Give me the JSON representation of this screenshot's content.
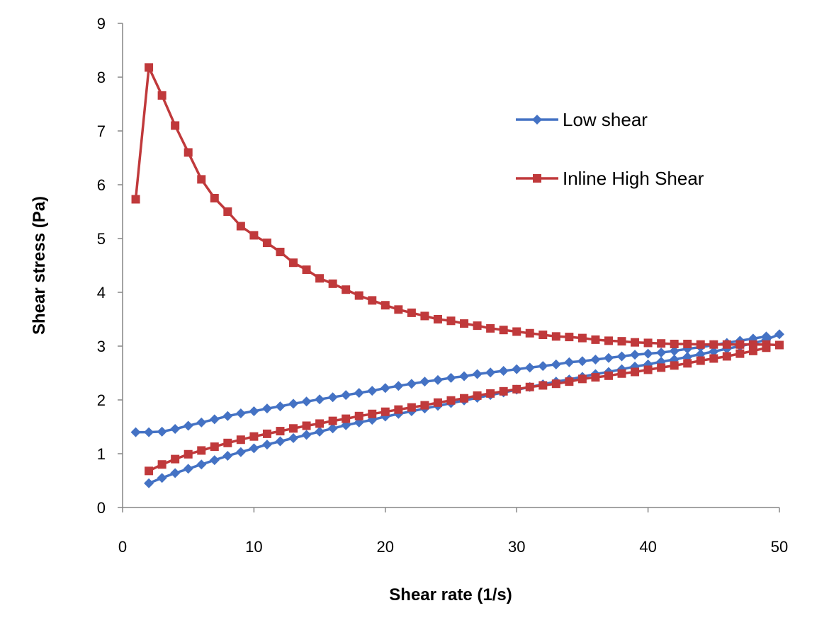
{
  "chart_data": {
    "type": "line",
    "title": "",
    "xlabel": "Shear rate (1/s)",
    "ylabel": "Shear stress (Pa)",
    "xlim": [
      0,
      50
    ],
    "ylim": [
      0,
      9
    ],
    "xticks": [
      0,
      10,
      20,
      30,
      40,
      50
    ],
    "yticks": [
      0,
      1,
      2,
      3,
      4,
      5,
      6,
      7,
      8,
      9
    ],
    "grid": false,
    "legend_position": "top-right",
    "series": [
      {
        "name": "Low shear",
        "color": "#4472C4",
        "marker": "diamond",
        "segments": [
          {
            "label": "upward",
            "x": [
              2,
              3,
              4,
              5,
              6,
              7,
              8,
              9,
              10,
              11,
              12,
              13,
              14,
              15,
              16,
              17,
              18,
              19,
              20,
              21,
              22,
              23,
              24,
              25,
              26,
              27,
              28,
              29,
              30,
              31,
              32,
              33,
              34,
              35,
              36,
              37,
              38,
              39,
              40,
              41,
              42,
              43,
              44,
              45,
              46,
              47,
              48,
              49,
              50
            ],
            "y": [
              0.45,
              0.55,
              0.64,
              0.72,
              0.8,
              0.88,
              0.96,
              1.03,
              1.1,
              1.17,
              1.23,
              1.29,
              1.35,
              1.41,
              1.47,
              1.53,
              1.58,
              1.63,
              1.69,
              1.74,
              1.79,
              1.84,
              1.89,
              1.94,
              1.99,
              2.04,
              2.09,
              2.14,
              2.19,
              2.24,
              2.29,
              2.34,
              2.38,
              2.43,
              2.48,
              2.52,
              2.57,
              2.62,
              2.66,
              2.71,
              2.75,
              2.8,
              2.85,
              2.9,
              2.95,
              3.0,
              3.05,
              3.12,
              3.22
            ]
          },
          {
            "label": "downward",
            "x": [
              49,
              48,
              47,
              46,
              45,
              44,
              43,
              42,
              41,
              40,
              39,
              38,
              37,
              36,
              35,
              34,
              33,
              32,
              31,
              30,
              29,
              28,
              27,
              26,
              25,
              24,
              23,
              22,
              21,
              20,
              19,
              18,
              17,
              16,
              15,
              14,
              13,
              12,
              11,
              10,
              9,
              8,
              7,
              6,
              5,
              4,
              3,
              2,
              1
            ],
            "y": [
              3.18,
              3.14,
              3.1,
              3.06,
              3.02,
              2.98,
              2.95,
              2.91,
              2.88,
              2.86,
              2.84,
              2.81,
              2.78,
              2.75,
              2.72,
              2.7,
              2.66,
              2.63,
              2.6,
              2.57,
              2.54,
              2.51,
              2.48,
              2.44,
              2.41,
              2.37,
              2.34,
              2.3,
              2.26,
              2.22,
              2.17,
              2.13,
              2.09,
              2.05,
              2.01,
              1.97,
              1.93,
              1.88,
              1.84,
              1.79,
              1.75,
              1.7,
              1.64,
              1.58,
              1.52,
              1.46,
              1.41,
              1.4,
              1.4
            ]
          }
        ]
      },
      {
        "name": "Inline High Shear",
        "color": "#C0393B",
        "marker": "square",
        "segments": [
          {
            "label": "upward",
            "x": [
              1,
              2,
              3,
              4,
              5,
              6,
              7,
              8,
              9,
              10,
              11,
              12,
              13,
              14,
              15,
              16,
              17,
              18,
              19,
              20,
              21,
              22,
              23,
              24,
              25,
              26,
              27,
              28,
              29,
              30,
              31,
              32,
              33,
              34,
              35,
              36,
              37,
              38,
              39,
              40,
              41,
              42,
              43,
              44,
              45,
              46,
              47,
              48,
              49,
              50
            ],
            "y": [
              5.73,
              8.18,
              7.66,
              7.1,
              6.6,
              6.1,
              5.75,
              5.5,
              5.23,
              5.06,
              4.92,
              4.75,
              4.55,
              4.42,
              4.26,
              4.16,
              4.05,
              3.94,
              3.85,
              3.76,
              3.68,
              3.62,
              3.56,
              3.5,
              3.47,
              3.42,
              3.38,
              3.33,
              3.3,
              3.27,
              3.24,
              3.21,
              3.18,
              3.17,
              3.15,
              3.12,
              3.1,
              3.09,
              3.07,
              3.06,
              3.05,
              3.04,
              3.04,
              3.03,
              3.03,
              3.03,
              3.03,
              3.03,
              3.03,
              3.02
            ]
          },
          {
            "label": "downward",
            "x": [
              49,
              48,
              47,
              46,
              45,
              44,
              43,
              42,
              41,
              40,
              39,
              38,
              37,
              36,
              35,
              34,
              33,
              32,
              31,
              30,
              29,
              28,
              27,
              26,
              25,
              24,
              23,
              22,
              21,
              20,
              19,
              18,
              17,
              16,
              15,
              14,
              13,
              12,
              11,
              10,
              9,
              8,
              7,
              6,
              5,
              4,
              3,
              2
            ],
            "y": [
              2.97,
              2.91,
              2.86,
              2.81,
              2.77,
              2.73,
              2.68,
              2.64,
              2.6,
              2.56,
              2.52,
              2.49,
              2.45,
              2.42,
              2.39,
              2.34,
              2.3,
              2.27,
              2.24,
              2.2,
              2.16,
              2.12,
              2.08,
              2.03,
              1.99,
              1.95,
              1.9,
              1.86,
              1.82,
              1.78,
              1.74,
              1.7,
              1.65,
              1.61,
              1.56,
              1.52,
              1.47,
              1.42,
              1.37,
              1.32,
              1.26,
              1.2,
              1.13,
              1.06,
              0.99,
              0.9,
              0.8,
              0.68
            ]
          }
        ]
      }
    ]
  }
}
